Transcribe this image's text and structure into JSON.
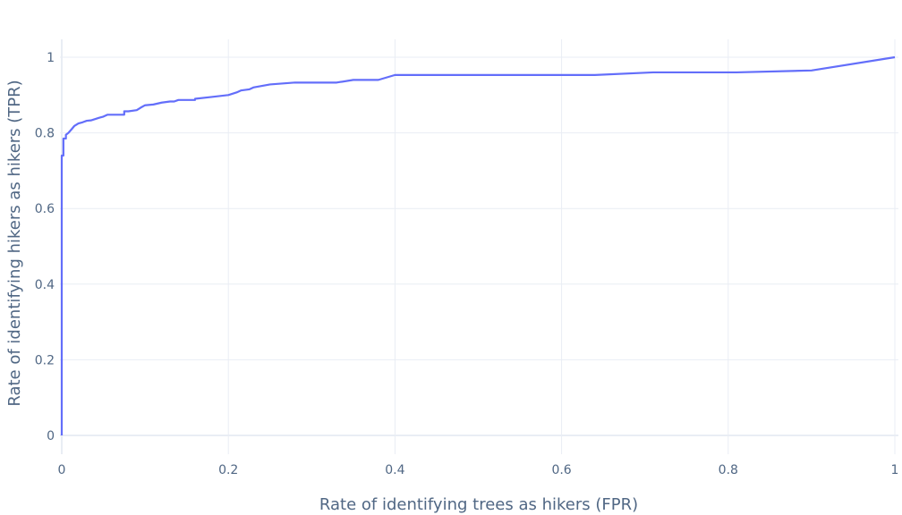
{
  "chart_data": {
    "type": "line",
    "title": "",
    "xlabel": "Rate of identifying trees as hikers (FPR)",
    "ylabel": "Rate of identifying hikers as hikers (TPR)",
    "xlim": [
      0,
      1
    ],
    "ylim": [
      0,
      1
    ],
    "xticks": [
      0,
      0.2,
      0.4,
      0.6,
      0.8,
      1
    ],
    "yticks": [
      0,
      0.2,
      0.4,
      0.6,
      0.8,
      1
    ],
    "xtick_labels": [
      "0",
      "0.2",
      "0.4",
      "0.6",
      "0.8",
      "1"
    ],
    "ytick_labels": [
      "0",
      "0.2",
      "0.4",
      "0.6",
      "0.8",
      "1"
    ],
    "grid": true,
    "line_color": "#636efa",
    "series": [
      {
        "x": [
          0,
          0,
          0.002,
          0.002,
          0.005,
          0.005,
          0.008,
          0.012,
          0.015,
          0.02,
          0.025,
          0.03,
          0.035,
          0.045,
          0.05,
          0.055,
          0.06,
          0.07,
          0.075,
          0.075,
          0.08,
          0.09,
          0.095,
          0.1,
          0.11,
          0.12,
          0.13,
          0.135,
          0.14,
          0.16,
          0.16,
          0.18,
          0.2,
          0.21,
          0.215,
          0.225,
          0.23,
          0.25,
          0.28,
          0.33,
          0.35,
          0.38,
          0.4,
          0.64,
          0.71,
          0.81,
          0.9,
          1.0
        ],
        "y": [
          0,
          0.74,
          0.74,
          0.785,
          0.785,
          0.795,
          0.8,
          0.81,
          0.818,
          0.825,
          0.828,
          0.832,
          0.833,
          0.84,
          0.843,
          0.848,
          0.848,
          0.848,
          0.848,
          0.857,
          0.857,
          0.86,
          0.867,
          0.873,
          0.875,
          0.88,
          0.883,
          0.883,
          0.887,
          0.887,
          0.89,
          0.895,
          0.9,
          0.907,
          0.912,
          0.915,
          0.92,
          0.928,
          0.933,
          0.933,
          0.94,
          0.94,
          0.953,
          0.953,
          0.96,
          0.96,
          0.965,
          1.0
        ]
      }
    ]
  }
}
